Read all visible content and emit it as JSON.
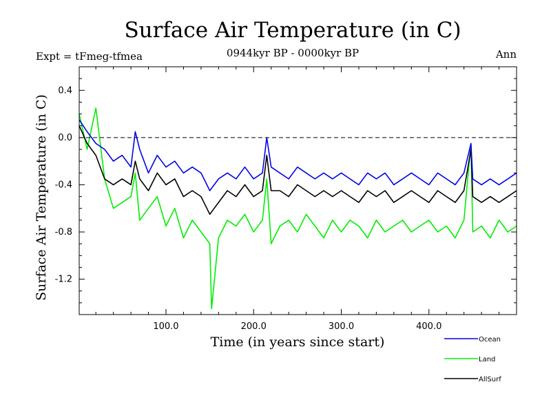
{
  "chart_data": {
    "type": "line",
    "title": "Surface Air Temperature (in C)",
    "subtitle_left": "Expt = tFmeg-tfmea",
    "subtitle_center": "0944kyr BP - 0000kyr BP",
    "subtitle_right": "Ann",
    "xlabel": "Time (in years since start)",
    "ylabel": "Surface Air Temperature (in C)",
    "xlim": [
      1,
      500
    ],
    "ylim": [
      -1.5,
      0.6
    ],
    "xticks": [
      100,
      200,
      300,
      400
    ],
    "xtick_labels": [
      "100.0",
      "200.0",
      "300.0",
      "400.0"
    ],
    "yticks": [
      0.4,
      0.0,
      -0.4,
      -0.8,
      -1.2
    ],
    "ytick_labels": [
      "0.4",
      "0.0",
      "-0.4",
      "-0.8",
      "-1.2"
    ],
    "reference_line": 0.0,
    "legend_position": "bottom-right",
    "series": [
      {
        "name": "Ocean",
        "color": "#0000ee",
        "x": [
          1,
          10,
          20,
          30,
          40,
          50,
          60,
          65,
          70,
          80,
          90,
          100,
          110,
          120,
          130,
          140,
          150,
          160,
          170,
          180,
          190,
          200,
          210,
          215,
          220,
          230,
          240,
          250,
          260,
          270,
          280,
          290,
          300,
          310,
          320,
          330,
          340,
          350,
          360,
          370,
          380,
          390,
          400,
          410,
          420,
          430,
          440,
          448,
          450,
          460,
          470,
          480,
          490,
          500
        ],
        "values": [
          0.15,
          0.05,
          -0.05,
          -0.1,
          -0.2,
          -0.15,
          -0.25,
          0.05,
          -0.1,
          -0.3,
          -0.15,
          -0.25,
          -0.2,
          -0.3,
          -0.25,
          -0.3,
          -0.45,
          -0.35,
          -0.3,
          -0.35,
          -0.25,
          -0.35,
          -0.3,
          0.0,
          -0.25,
          -0.3,
          -0.35,
          -0.25,
          -0.3,
          -0.35,
          -0.3,
          -0.35,
          -0.3,
          -0.35,
          -0.4,
          -0.3,
          -0.35,
          -0.3,
          -0.4,
          -0.35,
          -0.3,
          -0.35,
          -0.4,
          -0.3,
          -0.35,
          -0.4,
          -0.3,
          -0.05,
          -0.35,
          -0.4,
          -0.35,
          -0.4,
          -0.35,
          -0.3
        ]
      },
      {
        "name": "Land",
        "color": "#00ee00",
        "x": [
          1,
          10,
          20,
          30,
          40,
          50,
          60,
          65,
          70,
          80,
          90,
          100,
          110,
          120,
          130,
          140,
          150,
          152,
          160,
          170,
          180,
          190,
          200,
          210,
          215,
          220,
          230,
          240,
          250,
          260,
          270,
          280,
          290,
          300,
          310,
          320,
          330,
          340,
          350,
          360,
          370,
          380,
          390,
          400,
          410,
          420,
          430,
          440,
          448,
          450,
          460,
          470,
          480,
          490,
          500
        ],
        "values": [
          0.2,
          -0.1,
          0.25,
          -0.35,
          -0.6,
          -0.55,
          -0.5,
          -0.3,
          -0.7,
          -0.6,
          -0.5,
          -0.75,
          -0.6,
          -0.85,
          -0.7,
          -0.8,
          -0.9,
          -1.45,
          -0.85,
          -0.7,
          -0.75,
          -0.65,
          -0.8,
          -0.7,
          -0.35,
          -0.9,
          -0.75,
          -0.7,
          -0.8,
          -0.65,
          -0.75,
          -0.85,
          -0.7,
          -0.8,
          -0.7,
          -0.75,
          -0.85,
          -0.7,
          -0.8,
          -0.75,
          -0.7,
          -0.8,
          -0.75,
          -0.7,
          -0.8,
          -0.75,
          -0.85,
          -0.7,
          -0.05,
          -0.8,
          -0.75,
          -0.85,
          -0.7,
          -0.8,
          -0.75
        ]
      },
      {
        "name": "AllSurf",
        "color": "#000000",
        "x": [
          1,
          10,
          20,
          30,
          40,
          50,
          60,
          65,
          70,
          80,
          90,
          100,
          110,
          120,
          130,
          140,
          150,
          160,
          170,
          180,
          190,
          200,
          210,
          215,
          220,
          230,
          240,
          250,
          260,
          270,
          280,
          290,
          300,
          310,
          320,
          330,
          340,
          350,
          360,
          370,
          380,
          390,
          400,
          410,
          420,
          430,
          440,
          448,
          450,
          460,
          470,
          480,
          490,
          500
        ],
        "values": [
          0.1,
          -0.05,
          -0.15,
          -0.35,
          -0.4,
          -0.35,
          -0.4,
          -0.2,
          -0.35,
          -0.45,
          -0.3,
          -0.4,
          -0.35,
          -0.5,
          -0.45,
          -0.5,
          -0.65,
          -0.55,
          -0.45,
          -0.5,
          -0.4,
          -0.5,
          -0.45,
          -0.15,
          -0.45,
          -0.45,
          -0.5,
          -0.4,
          -0.45,
          -0.5,
          -0.45,
          -0.5,
          -0.45,
          -0.5,
          -0.55,
          -0.45,
          -0.5,
          -0.45,
          -0.55,
          -0.5,
          -0.45,
          -0.5,
          -0.55,
          -0.45,
          -0.5,
          -0.55,
          -0.45,
          -0.1,
          -0.5,
          -0.55,
          -0.5,
          -0.55,
          -0.5,
          -0.45
        ]
      }
    ]
  }
}
